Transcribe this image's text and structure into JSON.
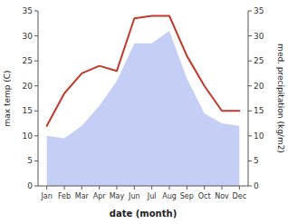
{
  "chart_data": {
    "type": "line",
    "categories": [
      "Jan",
      "Feb",
      "Mar",
      "Apr",
      "May",
      "Jun",
      "Jul",
      "Aug",
      "Sep",
      "Oct",
      "Nov",
      "Dec"
    ],
    "series": [
      {
        "type": "area",
        "color": "#c5cef5",
        "axis": "y2",
        "values": [
          10.0,
          9.5,
          12.0,
          16.0,
          21.0,
          28.5,
          28.5,
          31.0,
          21.5,
          14.5,
          12.5,
          12.0
        ]
      },
      {
        "type": "line",
        "color": "#c0392b",
        "values": [
          12.0,
          18.5,
          22.5,
          24.0,
          23.0,
          33.5,
          34.0,
          34.0,
          26.0,
          20.0,
          15.0,
          15.0
        ]
      }
    ],
    "xlabel": "date (month)",
    "ylabel": "max temp (C)",
    "y2label": "med. precipitation (kg/m2)",
    "ylim": [
      0,
      35
    ],
    "yticks": [
      0,
      5,
      10,
      15,
      20,
      25,
      30,
      35
    ],
    "y2lim": [
      0,
      35
    ],
    "y2ticks": [
      0,
      5,
      10,
      15,
      20,
      25,
      30,
      35
    ],
    "grid": false
  }
}
